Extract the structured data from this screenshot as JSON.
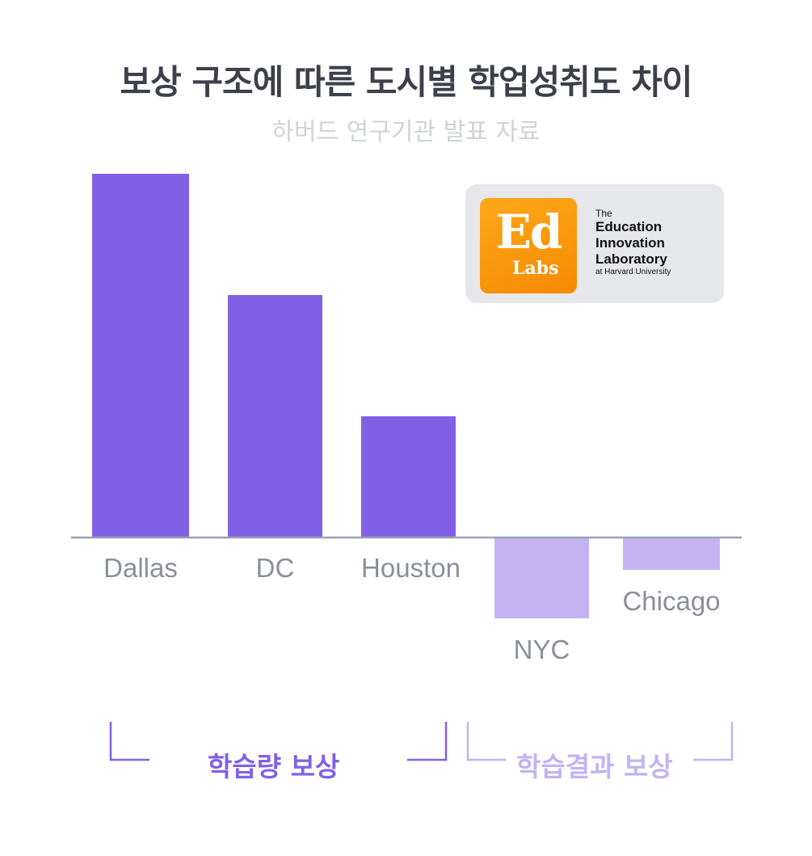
{
  "chart_data": {
    "type": "bar",
    "title": "보상 구조에 따른 도시별 학업성취도 차이",
    "subtitle": "하버드 연구기관 발표 자료",
    "categories": [
      "Dallas",
      "DC",
      "Houston",
      "NYC",
      "Chicago"
    ],
    "values": [
      4.5,
      3.0,
      1.5,
      -1.0,
      -0.4
    ],
    "ylim": [
      -1.3,
      4.6
    ],
    "grid": false,
    "legend": "none",
    "colors": {
      "positive": "#8260e6",
      "negative": "#c3b3f3",
      "axis": "#9aa2b1"
    },
    "groups": [
      {
        "label": "학습량 보상",
        "categories": [
          "Dallas",
          "DC",
          "Houston"
        ],
        "color": "#8260e6"
      },
      {
        "label": "학습결과 보상",
        "categories": [
          "NYC",
          "Chicago"
        ],
        "color": "#c3b3f3"
      }
    ]
  },
  "logo": {
    "mark_top": "Ed",
    "mark_bottom": "Labs",
    "line1": "The",
    "line2": "Education",
    "line3": "Innovation",
    "line4": "Laboratory",
    "line5": "at Harvard University"
  }
}
